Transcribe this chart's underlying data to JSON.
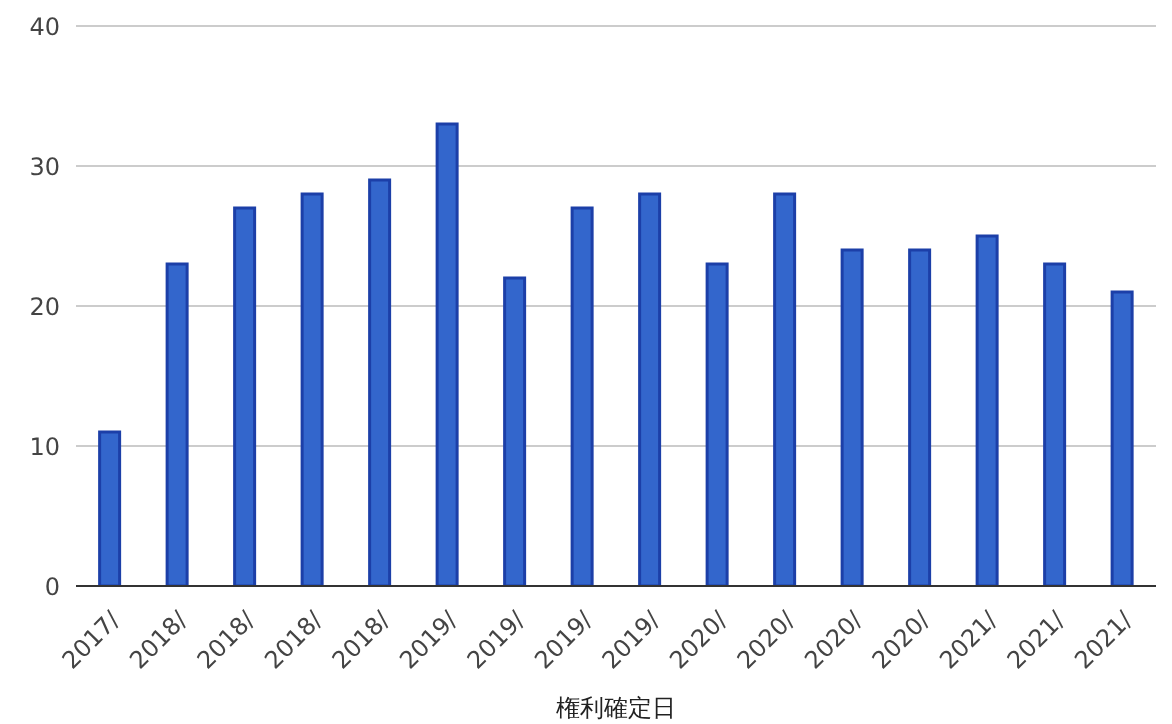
{
  "chart_data": {
    "type": "bar",
    "xlabel": "権利確定日",
    "categories": [
      "2017/",
      "2018/",
      "2018/",
      "2018/",
      "2018/",
      "2019/",
      "2019/",
      "2019/",
      "2019/",
      "2020/",
      "2020/",
      "2020/",
      "2020/",
      "2021/",
      "2021/",
      "2021/"
    ],
    "values": [
      11,
      23,
      27,
      28,
      29,
      33,
      22,
      27,
      28,
      23,
      28,
      24,
      24,
      25,
      23,
      21
    ],
    "color": "#3366cc",
    "ylim": [
      0,
      40
    ],
    "yticks": [
      0,
      10,
      20,
      30,
      40
    ],
    "grid": "y"
  }
}
